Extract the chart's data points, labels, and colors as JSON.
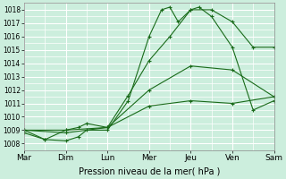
{
  "xlabel": "Pression niveau de la mer( hPa )",
  "bg_color": "#cceedd",
  "grid_color": "#ffffff",
  "line_color": "#1a6b1a",
  "xlim": [
    0,
    6
  ],
  "ylim": [
    1007.5,
    1018.5
  ],
  "yticks": [
    1008,
    1009,
    1010,
    1011,
    1012,
    1013,
    1014,
    1015,
    1016,
    1017,
    1018
  ],
  "xtick_labels": [
    "Mar",
    "Dim",
    "Lun",
    "Mer",
    "Jeu",
    "Ven",
    "Sam"
  ],
  "line1_x": [
    0,
    1,
    2,
    3,
    4,
    5,
    6
  ],
  "line1_y": [
    1009.0,
    1009.0,
    1009.2,
    1010.8,
    1011.2,
    1011.0,
    1011.5
  ],
  "line2_x": [
    0,
    1,
    2,
    3,
    4,
    5,
    6
  ],
  "line2_y": [
    1009.0,
    1008.8,
    1009.2,
    1012.0,
    1013.8,
    1013.5,
    1011.5
  ],
  "line3_x": [
    0,
    0.5,
    1.0,
    1.3,
    1.5,
    2.0,
    2.5,
    3.0,
    3.5,
    4.0,
    4.5,
    5.0,
    5.5,
    6.0
  ],
  "line3_y": [
    1009.0,
    1008.3,
    1009.0,
    1009.2,
    1009.5,
    1009.2,
    1011.6,
    1014.2,
    1016.0,
    1018.0,
    1018.0,
    1017.1,
    1015.2,
    1015.2
  ],
  "line4_x": [
    0,
    0.5,
    1.0,
    1.3,
    1.5,
    2.0,
    2.5,
    3.0,
    3.3,
    3.5,
    3.7,
    4.0,
    4.2,
    4.5,
    5.0,
    5.5,
    6.0
  ],
  "line4_y": [
    1008.8,
    1008.3,
    1008.2,
    1008.5,
    1009.0,
    1009.0,
    1011.2,
    1016.0,
    1018.0,
    1018.2,
    1017.1,
    1018.0,
    1018.2,
    1017.5,
    1015.2,
    1010.5,
    1011.2
  ]
}
